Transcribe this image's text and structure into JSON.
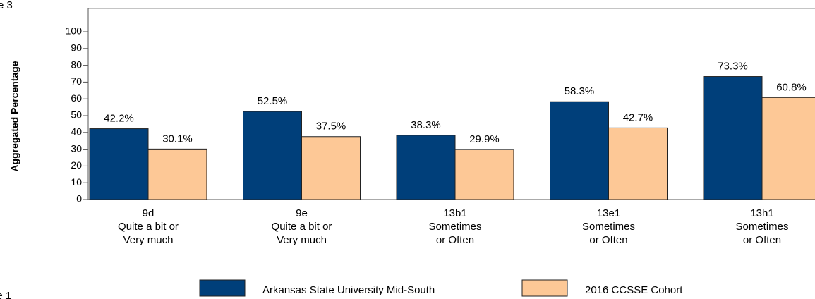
{
  "page_fragments": [
    "re 3",
    "le 1"
  ],
  "chart_data": {
    "type": "bar",
    "y_label": "Aggregated Percentage",
    "categories": [
      [
        "9d",
        "Quite a bit or",
        "Very much"
      ],
      [
        "9e",
        "Quite a bit or",
        "Very much"
      ],
      [
        "13b1",
        "Sometimes",
        "or Often"
      ],
      [
        "13e1",
        "Sometimes",
        "or Often"
      ],
      [
        "13h1",
        "Sometimes",
        "or Often"
      ]
    ],
    "series": [
      {
        "name": "Arkansas State University Mid-South",
        "color": "#003f7a",
        "values": [
          42.2,
          52.5,
          38.3,
          58.3,
          73.3
        ],
        "value_labels": [
          "42.2%",
          "52.5%",
          "38.3%",
          "58.3%",
          "73.3%"
        ]
      },
      {
        "name": "2016 CCSSE Cohort",
        "color": "#fdc896",
        "values": [
          30.1,
          37.5,
          29.9,
          42.7,
          60.8
        ],
        "value_labels": [
          "30.1%",
          "37.5%",
          "29.9%",
          "42.7%",
          "60.8%"
        ]
      }
    ],
    "ylim": [
      0,
      100
    ],
    "yticks": [
      0,
      10,
      20,
      30,
      40,
      50,
      60,
      70,
      80,
      90,
      100
    ]
  }
}
